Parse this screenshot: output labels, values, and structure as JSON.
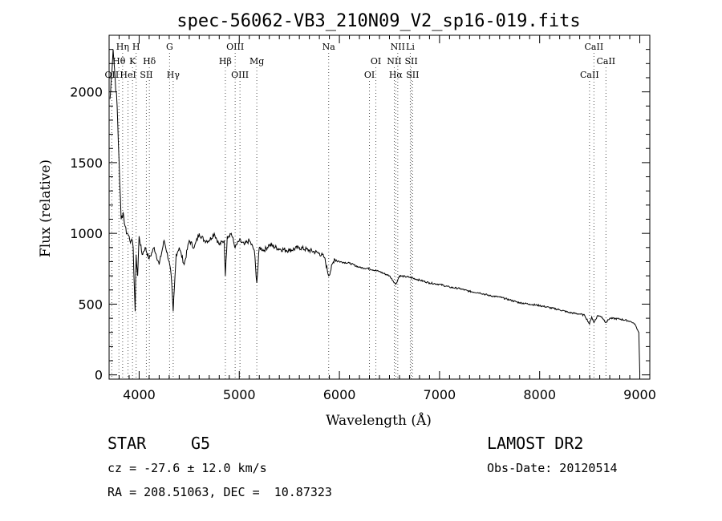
{
  "chart_data": {
    "type": "line",
    "title": "spec-56062-VB3_210N09_V2_sp16-019.fits",
    "xlabel": "Wavelength (Å)",
    "ylabel": "Flux (relative)",
    "xlim": [
      3700,
      9100
    ],
    "ylim": [
      -30,
      2400
    ],
    "xticks": [
      4000,
      5000,
      6000,
      7000,
      8000,
      9000
    ],
    "yticks": [
      0,
      500,
      1000,
      1500,
      2000
    ],
    "grid": false,
    "series": [
      {
        "x": [
          3710,
          3740,
          3760,
          3780,
          3800,
          3820,
          3840,
          3860,
          3880,
          3900,
          3920,
          3940,
          3960,
          3970,
          3985,
          4000,
          4030,
          4060,
          4100,
          4150,
          4200,
          4250,
          4300,
          4320,
          4340,
          4370,
          4400,
          4450,
          4500,
          4550,
          4600,
          4650,
          4700,
          4750,
          4800,
          4850,
          4861,
          4880,
          4920,
          4960,
          5000,
          5050,
          5100,
          5150,
          5175,
          5200,
          5250,
          5300,
          5400,
          5500,
          5600,
          5700,
          5800,
          5850,
          5893,
          5950,
          6000,
          6100,
          6200,
          6300,
          6400,
          6500,
          6563,
          6600,
          6700,
          6800,
          6900,
          7000,
          7100,
          7200,
          7300,
          7400,
          7500,
          7600,
          7700,
          7800,
          7900,
          8000,
          8100,
          8200,
          8300,
          8400,
          8450,
          8498,
          8520,
          8542,
          8580,
          8620,
          8662,
          8700,
          8800,
          8900,
          8950,
          8990,
          9000
        ],
        "values": [
          1950,
          2300,
          2100,
          1900,
          1500,
          1100,
          1150,
          1050,
          1000,
          980,
          950,
          900,
          450,
          850,
          700,
          980,
          850,
          900,
          820,
          900,
          780,
          950,
          800,
          700,
          450,
          850,
          900,
          780,
          950,
          900,
          1000,
          950,
          950,
          1000,
          920,
          950,
          700,
          980,
          1000,
          900,
          950,
          920,
          950,
          880,
          650,
          900,
          880,
          920,
          890,
          880,
          900,
          880,
          860,
          830,
          700,
          820,
          800,
          790,
          760,
          750,
          730,
          700,
          640,
          700,
          690,
          670,
          650,
          640,
          620,
          610,
          590,
          580,
          560,
          550,
          530,
          510,
          500,
          490,
          475,
          460,
          440,
          430,
          420,
          360,
          410,
          370,
          420,
          410,
          370,
          400,
          395,
          380,
          360,
          300,
          20
        ]
      }
    ],
    "lines": [
      {
        "label": "Hη",
        "x": 3835,
        "row": 1
      },
      {
        "label": "H",
        "x": 3970,
        "row": 1
      },
      {
        "label": "G",
        "x": 4304,
        "row": 1
      },
      {
        "label": "OIII",
        "x": 4959,
        "row": 1
      },
      {
        "label": "Na",
        "x": 5893,
        "row": 1
      },
      {
        "label": "NII",
        "x": 6583,
        "row": 1
      },
      {
        "label": "Li",
        "x": 6708,
        "row": 1
      },
      {
        "label": "CaII",
        "x": 8542,
        "row": 1
      },
      {
        "label": "Hθ",
        "x": 3798,
        "row": 2
      },
      {
        "label": "K",
        "x": 3934,
        "row": 2
      },
      {
        "label": "Hδ",
        "x": 4102,
        "row": 2
      },
      {
        "label": "Hβ",
        "x": 4861,
        "row": 2
      },
      {
        "label": "Mg",
        "x": 5175,
        "row": 2
      },
      {
        "label": "OI",
        "x": 6364,
        "row": 2
      },
      {
        "label": "NII",
        "x": 6548,
        "row": 2
      },
      {
        "label": "SII",
        "x": 6717,
        "row": 2
      },
      {
        "label": "CaII",
        "x": 8662,
        "row": 2
      },
      {
        "label": "OII",
        "x": 3727,
        "row": 3
      },
      {
        "label": "HeI",
        "x": 3889,
        "row": 3
      },
      {
        "label": "SII",
        "x": 4072,
        "row": 3
      },
      {
        "label": "Hγ",
        "x": 4340,
        "row": 3
      },
      {
        "label": "OIII",
        "x": 5007,
        "row": 3
      },
      {
        "label": "OI",
        "x": 6300,
        "row": 3
      },
      {
        "label": "Hα",
        "x": 6563,
        "row": 3
      },
      {
        "label": "SII",
        "x": 6731,
        "row": 3
      },
      {
        "label": "CaII",
        "x": 8498,
        "row": 3
      }
    ]
  },
  "info": {
    "object_class": "STAR",
    "subclass": "G5",
    "survey": "LAMOST DR2",
    "redshift": "cz = -27.6 ± 12.0 km/s",
    "obs_date": "Obs-Date: 20120514",
    "coords": "RA = 208.51063, DEC =  10.87323"
  }
}
